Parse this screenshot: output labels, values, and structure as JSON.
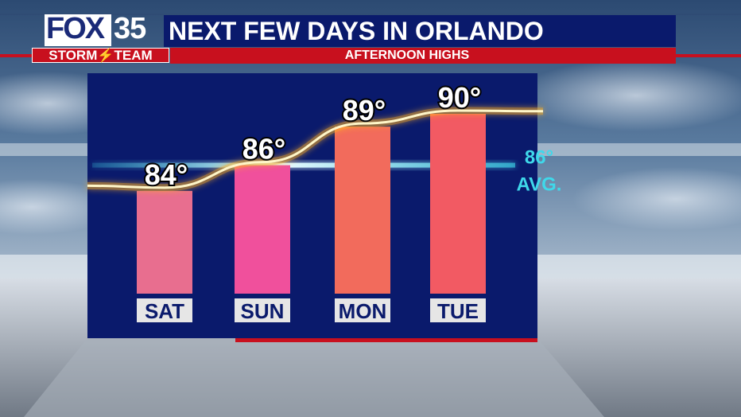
{
  "header": {
    "logo_fox": "FOX",
    "logo_number": "35",
    "title": "NEXT FEW DAYS IN ORLANDO",
    "storm_team": "STORM⚡TEAM",
    "subtitle": "AFTERNOON HIGHS"
  },
  "colors": {
    "panel": "#0a1a6c",
    "brand_red": "#c8101e",
    "avg_line": "#3fd8ea",
    "trend_line": "#ffd23c"
  },
  "chart_data": {
    "type": "bar",
    "title": "AFTERNOON HIGHS",
    "categories": [
      "SAT",
      "SUN",
      "MON",
      "TUE"
    ],
    "values": [
      84,
      86,
      89,
      90
    ],
    "value_labels": [
      "84°",
      "86°",
      "89°",
      "90°"
    ],
    "bar_colors": [
      "#e86e8f",
      "#f0509c",
      "#f26b5c",
      "#f25a63"
    ],
    "ylim": [
      76,
      93
    ],
    "average": 86,
    "average_label": "86°",
    "average_caption": "AVG."
  }
}
